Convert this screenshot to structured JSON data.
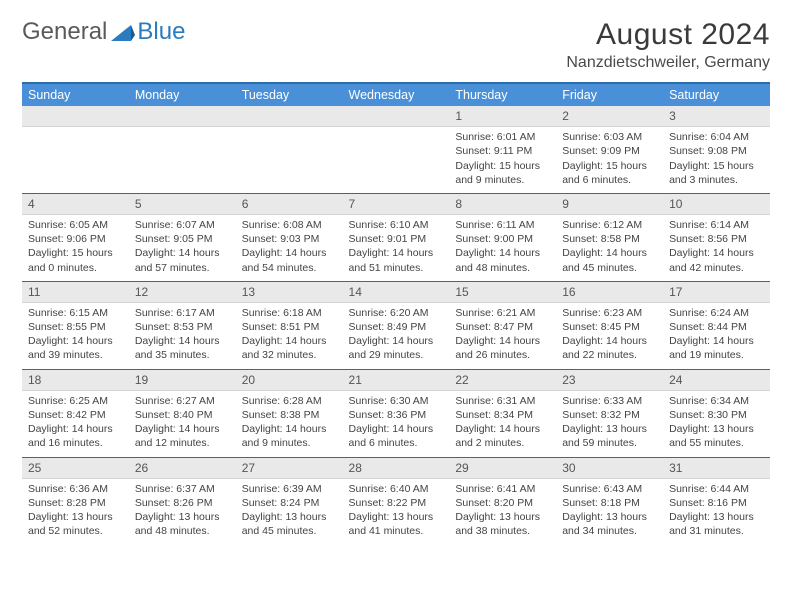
{
  "brand": {
    "general": "General",
    "blue": "Blue",
    "icon_color": "#2b7bbf"
  },
  "title": "August 2024",
  "location": "Nanzdietschweiler, Germany",
  "header_bg": "#4a90d9",
  "header_text": "#ffffff",
  "rule_color": "#2a6da8",
  "daynum_bg": "#e9e9e9",
  "columns": [
    "Sunday",
    "Monday",
    "Tuesday",
    "Wednesday",
    "Thursday",
    "Friday",
    "Saturday"
  ],
  "weeks": [
    [
      null,
      null,
      null,
      null,
      {
        "n": "1",
        "sr": "6:01 AM",
        "ss": "9:11 PM",
        "dl": "15 hours and 9 minutes."
      },
      {
        "n": "2",
        "sr": "6:03 AM",
        "ss": "9:09 PM",
        "dl": "15 hours and 6 minutes."
      },
      {
        "n": "3",
        "sr": "6:04 AM",
        "ss": "9:08 PM",
        "dl": "15 hours and 3 minutes."
      }
    ],
    [
      {
        "n": "4",
        "sr": "6:05 AM",
        "ss": "9:06 PM",
        "dl": "15 hours and 0 minutes."
      },
      {
        "n": "5",
        "sr": "6:07 AM",
        "ss": "9:05 PM",
        "dl": "14 hours and 57 minutes."
      },
      {
        "n": "6",
        "sr": "6:08 AM",
        "ss": "9:03 PM",
        "dl": "14 hours and 54 minutes."
      },
      {
        "n": "7",
        "sr": "6:10 AM",
        "ss": "9:01 PM",
        "dl": "14 hours and 51 minutes."
      },
      {
        "n": "8",
        "sr": "6:11 AM",
        "ss": "9:00 PM",
        "dl": "14 hours and 48 minutes."
      },
      {
        "n": "9",
        "sr": "6:12 AM",
        "ss": "8:58 PM",
        "dl": "14 hours and 45 minutes."
      },
      {
        "n": "10",
        "sr": "6:14 AM",
        "ss": "8:56 PM",
        "dl": "14 hours and 42 minutes."
      }
    ],
    [
      {
        "n": "11",
        "sr": "6:15 AM",
        "ss": "8:55 PM",
        "dl": "14 hours and 39 minutes."
      },
      {
        "n": "12",
        "sr": "6:17 AM",
        "ss": "8:53 PM",
        "dl": "14 hours and 35 minutes."
      },
      {
        "n": "13",
        "sr": "6:18 AM",
        "ss": "8:51 PM",
        "dl": "14 hours and 32 minutes."
      },
      {
        "n": "14",
        "sr": "6:20 AM",
        "ss": "8:49 PM",
        "dl": "14 hours and 29 minutes."
      },
      {
        "n": "15",
        "sr": "6:21 AM",
        "ss": "8:47 PM",
        "dl": "14 hours and 26 minutes."
      },
      {
        "n": "16",
        "sr": "6:23 AM",
        "ss": "8:45 PM",
        "dl": "14 hours and 22 minutes."
      },
      {
        "n": "17",
        "sr": "6:24 AM",
        "ss": "8:44 PM",
        "dl": "14 hours and 19 minutes."
      }
    ],
    [
      {
        "n": "18",
        "sr": "6:25 AM",
        "ss": "8:42 PM",
        "dl": "14 hours and 16 minutes."
      },
      {
        "n": "19",
        "sr": "6:27 AM",
        "ss": "8:40 PM",
        "dl": "14 hours and 12 minutes."
      },
      {
        "n": "20",
        "sr": "6:28 AM",
        "ss": "8:38 PM",
        "dl": "14 hours and 9 minutes."
      },
      {
        "n": "21",
        "sr": "6:30 AM",
        "ss": "8:36 PM",
        "dl": "14 hours and 6 minutes."
      },
      {
        "n": "22",
        "sr": "6:31 AM",
        "ss": "8:34 PM",
        "dl": "14 hours and 2 minutes."
      },
      {
        "n": "23",
        "sr": "6:33 AM",
        "ss": "8:32 PM",
        "dl": "13 hours and 59 minutes."
      },
      {
        "n": "24",
        "sr": "6:34 AM",
        "ss": "8:30 PM",
        "dl": "13 hours and 55 minutes."
      }
    ],
    [
      {
        "n": "25",
        "sr": "6:36 AM",
        "ss": "8:28 PM",
        "dl": "13 hours and 52 minutes."
      },
      {
        "n": "26",
        "sr": "6:37 AM",
        "ss": "8:26 PM",
        "dl": "13 hours and 48 minutes."
      },
      {
        "n": "27",
        "sr": "6:39 AM",
        "ss": "8:24 PM",
        "dl": "13 hours and 45 minutes."
      },
      {
        "n": "28",
        "sr": "6:40 AM",
        "ss": "8:22 PM",
        "dl": "13 hours and 41 minutes."
      },
      {
        "n": "29",
        "sr": "6:41 AM",
        "ss": "8:20 PM",
        "dl": "13 hours and 38 minutes."
      },
      {
        "n": "30",
        "sr": "6:43 AM",
        "ss": "8:18 PM",
        "dl": "13 hours and 34 minutes."
      },
      {
        "n": "31",
        "sr": "6:44 AM",
        "ss": "8:16 PM",
        "dl": "13 hours and 31 minutes."
      }
    ]
  ],
  "labels": {
    "sunrise": "Sunrise:",
    "sunset": "Sunset:",
    "daylight": "Daylight:"
  }
}
